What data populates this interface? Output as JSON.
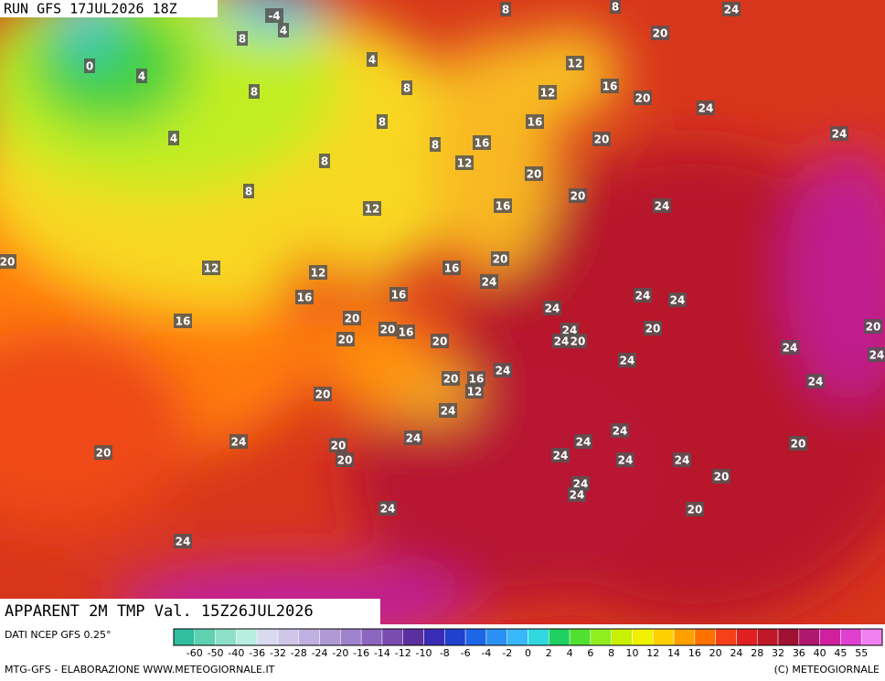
{
  "header": {
    "run": "RUN GFS 17JUL2026 18Z"
  },
  "map": {
    "contour_labels": [
      -4,
      4,
      8,
      8,
      24,
      20,
      0,
      4,
      8,
      8,
      4,
      8,
      12,
      12,
      16,
      20,
      24,
      8,
      4,
      16,
      16,
      20,
      24,
      8,
      8,
      12,
      20,
      8,
      20,
      12,
      16,
      24,
      20,
      12,
      12,
      16,
      20,
      24,
      16,
      16,
      24,
      24,
      24,
      16,
      20,
      20,
      16,
      20,
      24,
      20,
      20,
      20,
      24,
      20,
      24,
      24,
      24,
      20,
      16,
      12,
      24,
      24,
      20,
      24,
      24,
      24,
      20,
      24,
      24,
      20,
      20,
      20,
      24,
      24,
      24,
      20,
      24,
      24,
      24,
      20,
      24
    ]
  },
  "footer": {
    "title": "APPARENT 2M TMP Val. 15Z26JUL2026",
    "source": "DATI NCEP GFS 0.25°",
    "credit": "MTG-GFS - ELABORAZIONE WWW.METEOGIORNALE.IT",
    "copyright": "(C) METEOGIORNALE"
  },
  "scale": {
    "colors": [
      "#2fbf9f",
      "#5fd0b0",
      "#8fe0c8",
      "#b8eee0",
      "#d9d9f0",
      "#cfc6ea",
      "#c0b0e0",
      "#b09ad6",
      "#9f82cc",
      "#8c66bf",
      "#7a4cb2",
      "#5b2fa0",
      "#3a2bb5",
      "#2040d0",
      "#1e66e8",
      "#2a90f5",
      "#38b8f8",
      "#30d8e0",
      "#20d060",
      "#50e030",
      "#90ee20",
      "#c8f000",
      "#f0f000",
      "#ffd000",
      "#ffa000",
      "#ff7000",
      "#f84018",
      "#e02020",
      "#c01828",
      "#a01030",
      "#b01870",
      "#d020a0",
      "#e040d0",
      "#f080f0"
    ],
    "ticks": [
      -60,
      -50,
      -40,
      -36,
      -32,
      -28,
      -24,
      -20,
      -16,
      -14,
      -12,
      -10,
      -8,
      -6,
      -4,
      -2,
      0,
      2,
      4,
      6,
      8,
      10,
      12,
      14,
      16,
      20,
      24,
      28,
      32,
      36,
      40,
      45,
      55
    ]
  }
}
